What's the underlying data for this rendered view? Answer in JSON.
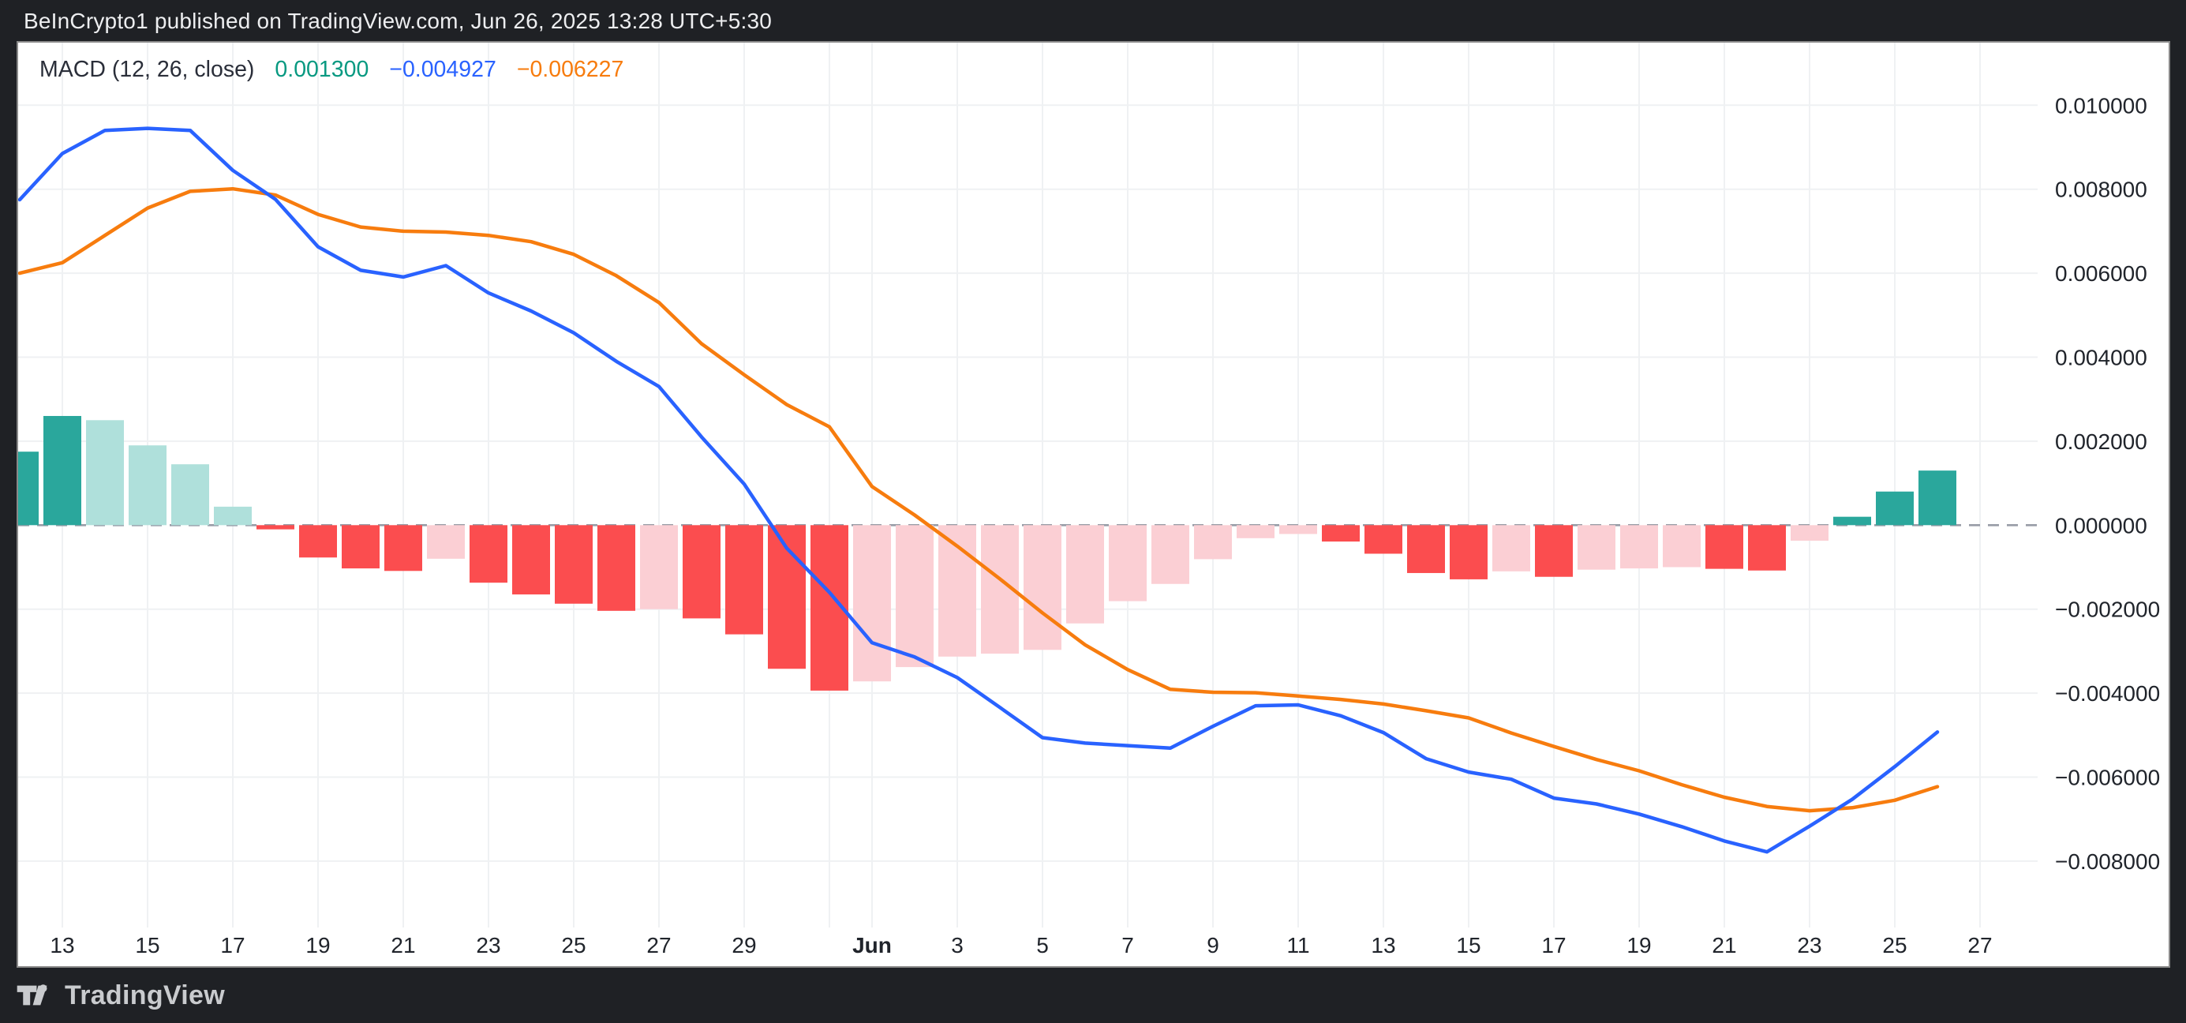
{
  "header": {
    "text": "BeInCrypto1 published on TradingView.com, Jun 26, 2025 13:28 UTC+5:30"
  },
  "legend": {
    "label": "MACD (12, 26, close)",
    "histogram_value": "0.001300",
    "macd_value": "−0.004927",
    "signal_value": "−0.006227"
  },
  "footer": {
    "brand": "TradingView"
  },
  "colors": {
    "background_dark": "#1F2125",
    "panel_white": "#FFFFFF",
    "grid": "#EFF1F3",
    "zero_dash": "#989CA6",
    "axis_text": "#20242B",
    "macd_line": "#2962FF",
    "signal_line": "#F77C0E",
    "hist_pos": "#2AA79C",
    "hist_pos_light": "#AFE0DB",
    "hist_neg": "#FB4D4F",
    "hist_neg_light": "#FBCFD4",
    "legend_hist_value": "#089981"
  },
  "chart_data": {
    "type": "line+bar (MACD indicator panel)",
    "title": "MACD (12, 26, close)",
    "xlabel": "",
    "ylabel": "",
    "ylim": [
      -0.00958,
      0.01149
    ],
    "grid": true,
    "legend_position": "top-left",
    "series_names": [
      "MACD line",
      "Signal line",
      "Histogram"
    ],
    "dates": [
      "May 12",
      "May 13",
      "May 14",
      "May 15",
      "May 16",
      "May 17",
      "May 18",
      "May 19",
      "May 20",
      "May 21",
      "May 22",
      "May 23",
      "May 24",
      "May 25",
      "May 26",
      "May 27",
      "May 28",
      "May 29",
      "May 30",
      "May 31",
      "Jun 1",
      "Jun 2",
      "Jun 3",
      "Jun 4",
      "Jun 5",
      "Jun 6",
      "Jun 7",
      "Jun 8",
      "Jun 9",
      "Jun 10",
      "Jun 11",
      "Jun 12",
      "Jun 13",
      "Jun 14",
      "Jun 15",
      "Jun 16",
      "Jun 17",
      "Jun 18",
      "Jun 19",
      "Jun 20",
      "Jun 21",
      "Jun 22",
      "Jun 23",
      "Jun 24",
      "Jun 25",
      "Jun 26"
    ],
    "macd": [
      0.00775,
      0.00885,
      0.0094,
      0.00945,
      0.0094,
      0.00845,
      0.00776,
      0.00663,
      0.00607,
      0.00591,
      0.00618,
      0.00553,
      0.0051,
      0.00458,
      0.0039,
      0.0033,
      0.0021,
      0.00098,
      -0.00055,
      -0.0016,
      -0.0028,
      -0.00314,
      -0.00363,
      -0.00434,
      -0.00506,
      -0.00519,
      -0.00525,
      -0.00531,
      -0.00479,
      -0.0043,
      -0.00428,
      -0.00454,
      -0.00494,
      -0.00556,
      -0.00588,
      -0.00605,
      -0.0065,
      -0.00664,
      -0.00688,
      -0.00718,
      -0.00752,
      -0.00778,
      -0.00717,
      -0.00653,
      -0.00575,
      -0.004927
    ],
    "signal": [
      0.006,
      0.00625,
      0.0069,
      0.00755,
      0.00795,
      0.00801,
      0.00786,
      0.0074,
      0.0071,
      0.007,
      0.00698,
      0.0069,
      0.00675,
      0.00645,
      0.00594,
      0.0053,
      0.00432,
      0.00358,
      0.00287,
      0.00234,
      0.00092,
      0.00024,
      -0.0005,
      -0.00128,
      -0.00209,
      -0.00285,
      -0.00344,
      -0.00391,
      -0.00398,
      -0.00399,
      -0.00407,
      -0.00415,
      -0.00426,
      -0.00442,
      -0.00459,
      -0.00495,
      -0.00527,
      -0.00558,
      -0.00585,
      -0.00618,
      -0.00648,
      -0.0067,
      -0.0068,
      -0.00673,
      -0.00655,
      -0.006227
    ],
    "histogram": [
      0.00175,
      0.0026,
      0.0025,
      0.0019,
      0.00145,
      0.00044,
      -0.0001,
      -0.00077,
      -0.00103,
      -0.00109,
      -0.0008,
      -0.00137,
      -0.00165,
      -0.00187,
      -0.00204,
      -0.002,
      -0.00222,
      -0.0026,
      -0.00342,
      -0.00394,
      -0.00372,
      -0.00338,
      -0.00313,
      -0.00306,
      -0.00297,
      -0.00234,
      -0.00181,
      -0.0014,
      -0.00081,
      -0.00031,
      -0.00021,
      -0.00039,
      -0.00068,
      -0.00114,
      -0.00129,
      -0.0011,
      -0.00123,
      -0.00106,
      -0.00103,
      -0.001,
      -0.00104,
      -0.00108,
      -0.00037,
      0.0002,
      0.0008,
      0.0013
    ],
    "histogram_colors": [
      "pos",
      "pos",
      "posLight",
      "posLight",
      "posLight",
      "posLight",
      "neg",
      "neg",
      "neg",
      "neg",
      "negLight",
      "neg",
      "neg",
      "neg",
      "neg",
      "negLight",
      "neg",
      "neg",
      "neg",
      "neg",
      "negLight",
      "negLight",
      "negLight",
      "negLight",
      "negLight",
      "negLight",
      "negLight",
      "negLight",
      "negLight",
      "negLight",
      "negLight",
      "neg",
      "neg",
      "neg",
      "neg",
      "negLight",
      "neg",
      "negLight",
      "negLight",
      "negLight",
      "neg",
      "neg",
      "negLight",
      "pos",
      "pos",
      "pos"
    ],
    "y_axis_ticks": [
      {
        "value": 0.01,
        "label": "0.010000"
      },
      {
        "value": 0.008,
        "label": "0.008000"
      },
      {
        "value": 0.006,
        "label": "0.006000"
      },
      {
        "value": 0.004,
        "label": "0.004000"
      },
      {
        "value": 0.002,
        "label": "0.002000"
      },
      {
        "value": 0.0,
        "label": "0.000000"
      },
      {
        "value": -0.002,
        "label": "−0.002000"
      },
      {
        "value": -0.004,
        "label": "−0.004000"
      },
      {
        "value": -0.006,
        "label": "−0.006000"
      },
      {
        "value": -0.008,
        "label": "−0.008000"
      }
    ],
    "x_axis_labels": [
      {
        "t": "13",
        "d": 1
      },
      {
        "t": "15",
        "d": 3
      },
      {
        "t": "17",
        "d": 5
      },
      {
        "t": "19",
        "d": 7
      },
      {
        "t": "21",
        "d": 9
      },
      {
        "t": "23",
        "d": 11
      },
      {
        "t": "25",
        "d": 13
      },
      {
        "t": "27",
        "d": 15
      },
      {
        "t": "29",
        "d": 17
      },
      {
        "t": "Jun",
        "d": 20,
        "bold": true
      },
      {
        "t": "3",
        "d": 22
      },
      {
        "t": "5",
        "d": 24
      },
      {
        "t": "7",
        "d": 26
      },
      {
        "t": "9",
        "d": 28
      },
      {
        "t": "11",
        "d": 30
      },
      {
        "t": "13",
        "d": 32
      },
      {
        "t": "15",
        "d": 34
      },
      {
        "t": "17",
        "d": 36
      },
      {
        "t": "19",
        "d": 38
      },
      {
        "t": "21",
        "d": 40
      },
      {
        "t": "23",
        "d": 42
      },
      {
        "t": "25",
        "d": 44
      },
      {
        "t": "27",
        "d": 46
      }
    ],
    "gridline_day_indices": [
      1,
      3,
      5,
      7,
      9,
      11,
      13,
      15,
      17,
      19,
      20,
      22,
      24,
      26,
      28,
      30,
      32,
      34,
      36,
      38,
      40,
      42,
      44,
      46
    ]
  }
}
